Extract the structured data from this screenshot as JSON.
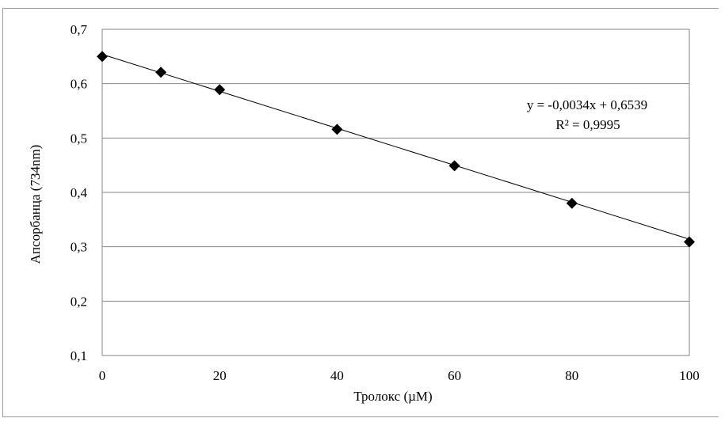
{
  "chart_data": {
    "type": "scatter",
    "title": "",
    "xlabel": "Тролокс (µM)",
    "ylabel": "Апсорбанца (734nm)",
    "xlim": [
      0,
      100
    ],
    "ylim": [
      0.1,
      0.7
    ],
    "x_ticks": [
      "0",
      "20",
      "40",
      "60",
      "80",
      "100"
    ],
    "y_ticks": [
      "0,1",
      "0,2",
      "0,3",
      "0,4",
      "0,5",
      "0,6",
      "0,7"
    ],
    "grid": "horizontal",
    "series": [
      {
        "x": [
          0,
          10,
          20,
          40,
          60,
          80,
          100
        ],
        "y": [
          0.65,
          0.621,
          0.589,
          0.516,
          0.449,
          0.38,
          0.309
        ],
        "marker": "diamond",
        "color": "#000000"
      }
    ],
    "trendline": {
      "type": "linear",
      "slope": -0.0034,
      "intercept": 0.6539,
      "color": "#000000"
    },
    "annotations": {
      "equation": "y = -0,0034x + 0,6539",
      "r_squared": "R² = 0,9995"
    }
  }
}
